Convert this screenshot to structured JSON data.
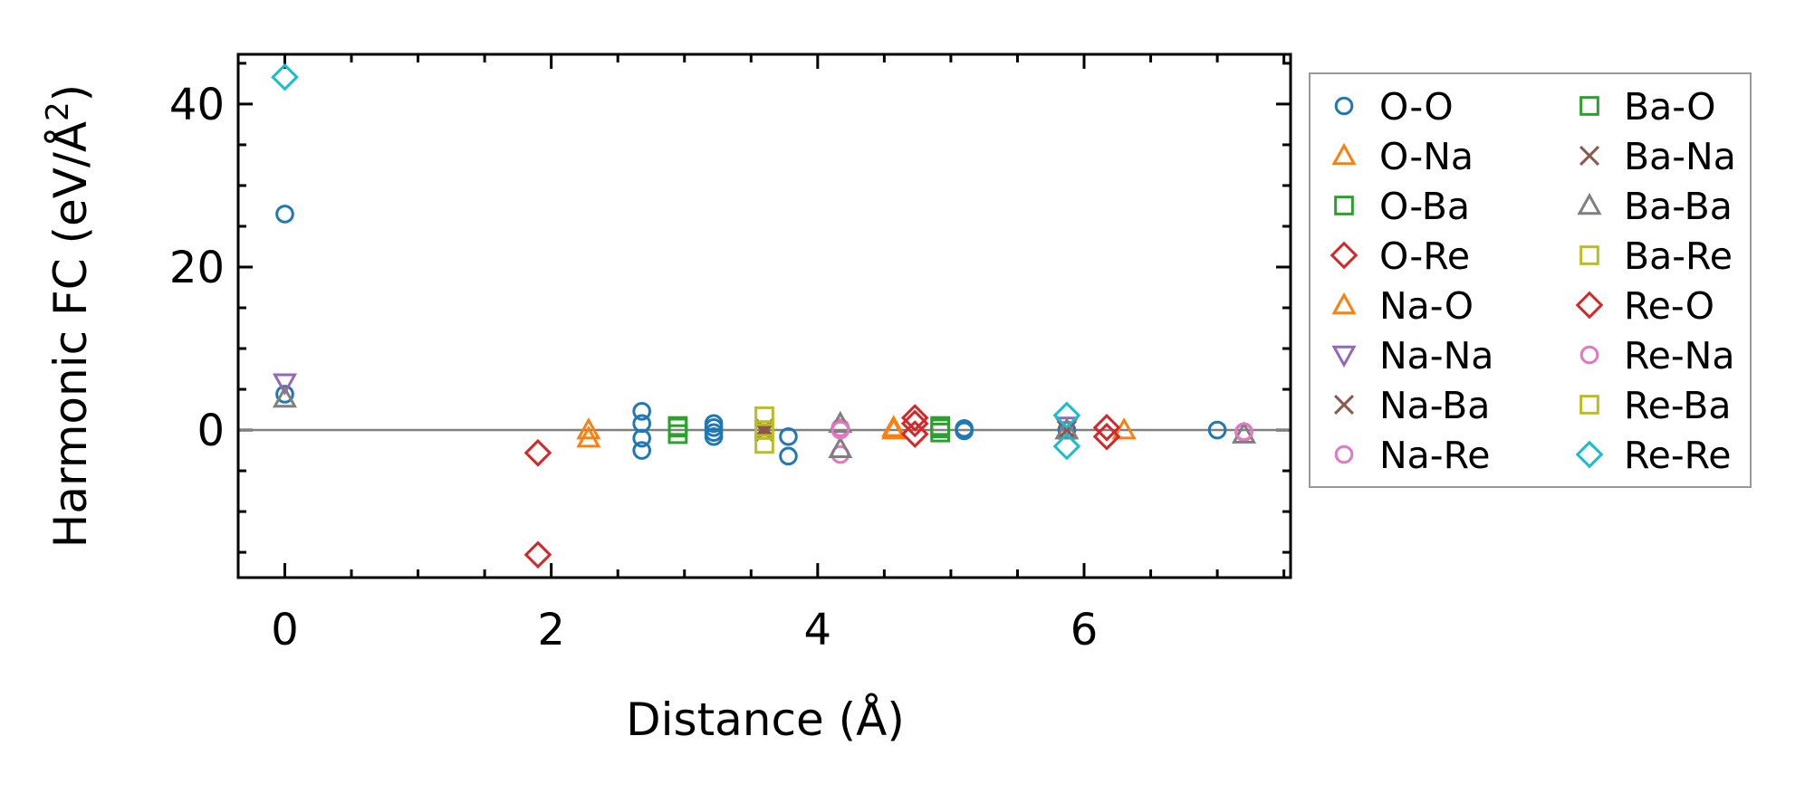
{
  "chart_data": {
    "type": "scatter",
    "title": "",
    "xlabel": "Distance (Å)",
    "ylabel": "Harmonic FC (eV/Å²)",
    "ylabel_parts": {
      "main": "Harmonic FC (eV/Å",
      "sup": "2",
      "end": ")"
    },
    "xlim": [
      -0.35,
      7.55
    ],
    "ylim": [
      -18.1,
      46.1
    ],
    "xticks": [
      0,
      2,
      4,
      6
    ],
    "yticks": [
      0,
      20,
      40
    ],
    "xtick_labels": [
      "0",
      "2",
      "4",
      "6"
    ],
    "ytick_labels": [
      "0",
      "20",
      "40"
    ],
    "zero_line": true,
    "grid": false,
    "legend_position": "outside-right",
    "series": [
      {
        "name": "O-O",
        "marker": "circle",
        "color": "#1f77b4",
        "points": [
          [
            0,
            26.5
          ],
          [
            0,
            4.4
          ],
          [
            2.68,
            2.3
          ],
          [
            2.68,
            0.8
          ],
          [
            2.68,
            -1.0
          ],
          [
            2.68,
            -2.5
          ],
          [
            3.22,
            0.8
          ],
          [
            3.22,
            0.3
          ],
          [
            3.22,
            -0.3
          ],
          [
            3.22,
            -0.8
          ],
          [
            3.78,
            -0.8
          ],
          [
            3.78,
            -3.2
          ],
          [
            4.17,
            0.2
          ],
          [
            5.1,
            0.2
          ],
          [
            5.1,
            -0.1
          ],
          [
            5.87,
            0.0
          ],
          [
            7.0,
            0.0
          ]
        ]
      },
      {
        "name": "O-Na",
        "marker": "triangle-up",
        "color": "#ff7f0e",
        "points": [
          [
            2.28,
            0.0
          ],
          [
            4.57,
            0.3
          ],
          [
            6.3,
            0.0
          ]
        ]
      },
      {
        "name": "O-Ba",
        "marker": "square",
        "color": "#2ca02c",
        "points": [
          [
            2.95,
            0.5
          ],
          [
            2.95,
            -0.5
          ],
          [
            4.92,
            0.5
          ],
          [
            4.92,
            -0.3
          ]
        ]
      },
      {
        "name": "O-Re",
        "marker": "diamond",
        "color": "#d62728",
        "points": [
          [
            1.9,
            -2.8
          ],
          [
            1.9,
            -15.3
          ],
          [
            4.73,
            1.5
          ],
          [
            4.73,
            0.8
          ],
          [
            6.17,
            0.3
          ]
        ]
      },
      {
        "name": "Na-O",
        "marker": "triangle-up",
        "color": "#ff7f0e",
        "points": [
          [
            2.28,
            -1.0
          ],
          [
            4.57,
            0.0
          ]
        ]
      },
      {
        "name": "Na-Na",
        "marker": "triangle-down",
        "color": "#9467bd",
        "points": [
          [
            0,
            5.8
          ],
          [
            5.87,
            0.5
          ]
        ]
      },
      {
        "name": "Na-Ba",
        "marker": "x",
        "color": "#8c564b",
        "points": [
          [
            3.6,
            0.3
          ],
          [
            3.6,
            -0.3
          ]
        ]
      },
      {
        "name": "Na-Re",
        "marker": "circle",
        "color": "#e377c2",
        "points": [
          [
            4.17,
            0.3
          ],
          [
            4.17,
            -3.0
          ],
          [
            7.2,
            -0.3
          ]
        ]
      },
      {
        "name": "Ba-O",
        "marker": "square",
        "color": "#2ca02c",
        "points": [
          [
            2.95,
            0.3
          ],
          [
            4.92,
            0.2
          ]
        ]
      },
      {
        "name": "Ba-Na",
        "marker": "x",
        "color": "#8c564b",
        "points": [
          [
            3.6,
            0.0
          ],
          [
            5.87,
            0.0
          ]
        ]
      },
      {
        "name": "Ba-Ba",
        "marker": "triangle-up",
        "color": "#7f7f7f",
        "points": [
          [
            0,
            3.9
          ],
          [
            4.17,
            0.8
          ],
          [
            4.17,
            -2.3
          ],
          [
            5.87,
            0.0
          ],
          [
            7.2,
            -0.5
          ]
        ]
      },
      {
        "name": "Ba-Re",
        "marker": "square",
        "color": "#bcbd22",
        "points": [
          [
            3.6,
            1.7
          ],
          [
            3.6,
            0.0
          ]
        ]
      },
      {
        "name": "Re-O",
        "marker": "diamond",
        "color": "#d62728",
        "points": [
          [
            4.73,
            -0.5
          ],
          [
            6.17,
            -0.8
          ]
        ]
      },
      {
        "name": "Re-Na",
        "marker": "circle",
        "color": "#e377c2",
        "points": [
          [
            4.17,
            0.0
          ],
          [
            7.2,
            -0.2
          ]
        ]
      },
      {
        "name": "Re-Ba",
        "marker": "square",
        "color": "#bcbd22",
        "points": [
          [
            3.6,
            -1.7
          ]
        ]
      },
      {
        "name": "Re-Re",
        "marker": "diamond",
        "color": "#17becf",
        "points": [
          [
            0,
            43.3
          ],
          [
            5.87,
            1.8
          ],
          [
            5.87,
            -2.0
          ]
        ]
      }
    ]
  }
}
